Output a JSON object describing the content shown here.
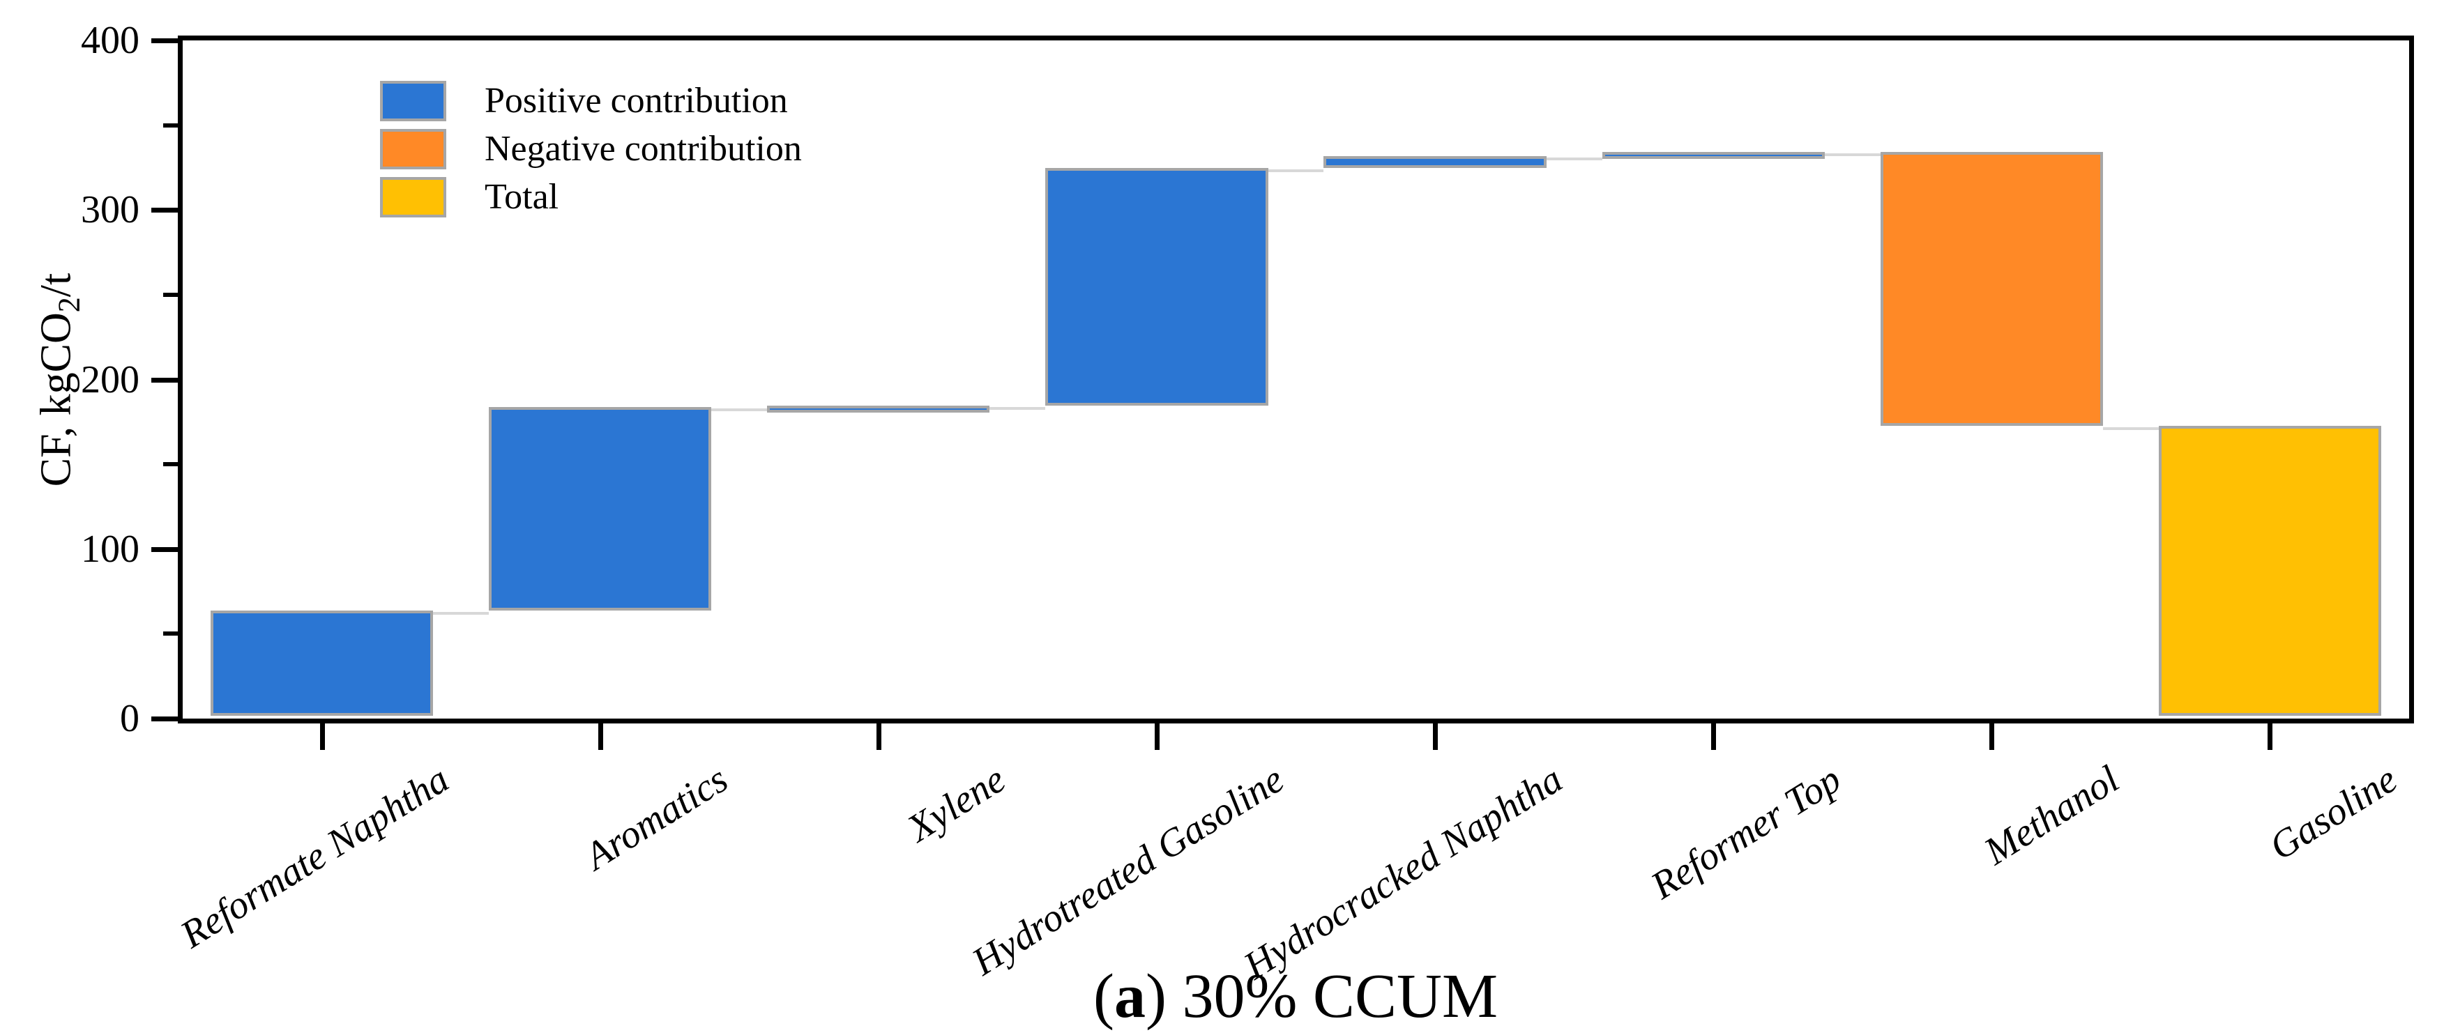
{
  "chart_data": {
    "type": "waterfall",
    "title": "(a) 30% CCUM",
    "caption": {
      "pre": "(",
      "bold": "a",
      "post": ") 30% CCUM"
    },
    "ylabel": {
      "main": "CF, kgCO",
      "sub": "2",
      "tail": "/t"
    },
    "ylim": [
      0,
      400
    ],
    "y_major_ticks": [
      0,
      100,
      200,
      300,
      400
    ],
    "y_minor_ticks": [
      50,
      150,
      250,
      350
    ],
    "grid": false,
    "legend_position": "top-left-inside",
    "categories": [
      "Reformate Naphtha",
      "Aromatics",
      "Xylene",
      "Hydrotreated Gasoline",
      "Hydrocracked Naphtha",
      "Reformer Top",
      "Methanol",
      "Gasoline"
    ],
    "bars": [
      {
        "label": "Reformate Naphtha",
        "from": 0,
        "to": 62,
        "delta": 62,
        "kind": "positive"
      },
      {
        "label": "Aromatics",
        "from": 62,
        "to": 182,
        "delta": 120,
        "kind": "positive"
      },
      {
        "label": "Xylene",
        "from": 182,
        "to": 183,
        "delta": 1,
        "kind": "positive"
      },
      {
        "label": "Hydrotreated Gasoline",
        "from": 183,
        "to": 323,
        "delta": 140,
        "kind": "positive"
      },
      {
        "label": "Hydrocracked Naphtha",
        "from": 323,
        "to": 330,
        "delta": 7,
        "kind": "positive"
      },
      {
        "label": "Reformer Top",
        "from": 330,
        "to": 332.5,
        "delta": 2.5,
        "kind": "positive"
      },
      {
        "label": "Methanol",
        "from": 332.5,
        "to": 171,
        "delta": -161.5,
        "kind": "negative"
      },
      {
        "label": "Gasoline",
        "from": 0,
        "to": 171,
        "delta": 171,
        "kind": "total"
      }
    ],
    "legend": [
      {
        "label": "Positive contribution",
        "kind": "positive"
      },
      {
        "label": "Negative contribution",
        "kind": "negative"
      },
      {
        "label": "Total",
        "kind": "total"
      }
    ],
    "colors": {
      "positive": "#2B76D3",
      "negative": "#FF8926",
      "total": "#FFC003",
      "bar_border": "#A6A6A6",
      "connector": "#D8D8D8",
      "axis": "#000000"
    }
  }
}
